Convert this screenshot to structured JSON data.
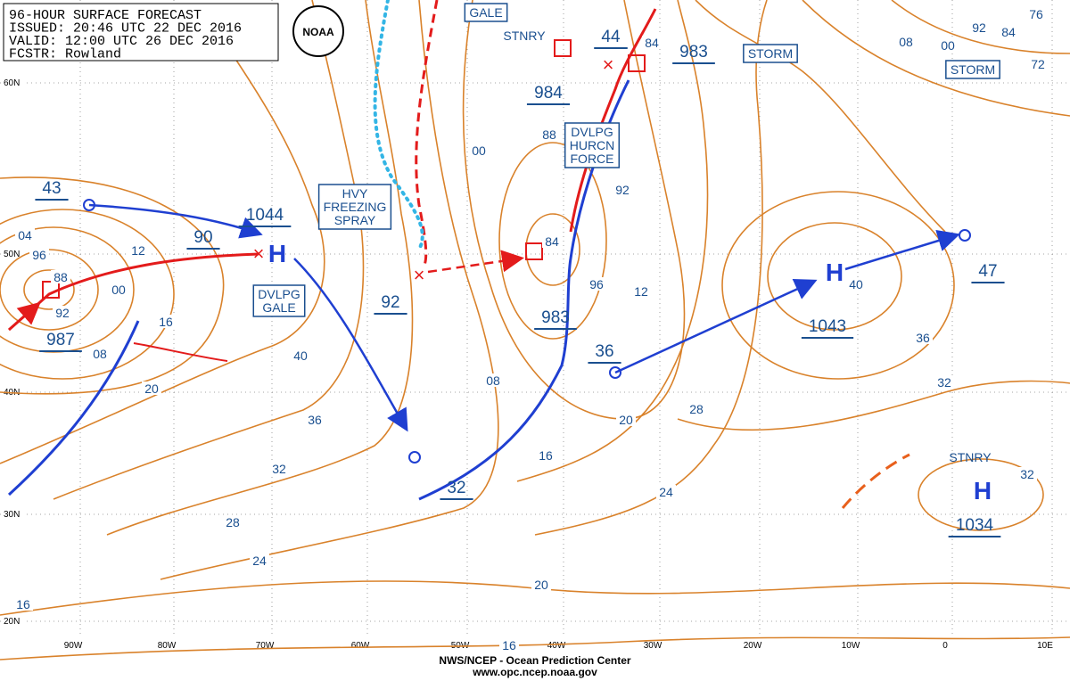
{
  "header": {
    "lines": [
      "96-HOUR SURFACE FORECAST",
      "ISSUED: 20:46 UTC 22 DEC 2016",
      "VALID:  12:00 UTC 26 DEC 2016",
      "FCSTR: Rowland"
    ],
    "logo": "NOAA"
  },
  "footer": {
    "agency": "NWS/NCEP - Ocean Prediction Center",
    "url": "www.opc.ncep.noaa.gov"
  },
  "latitudes": [
    "60N",
    "50N",
    "40N",
    "30N",
    "20N"
  ],
  "longitudes": [
    "90W",
    "80W",
    "70W",
    "60W",
    "50W",
    "40W",
    "30W",
    "20W",
    "10W",
    "0",
    "10E"
  ],
  "pressure_labels": [
    "43",
    "1044",
    "90",
    "987",
    "92",
    "983",
    "36",
    "32",
    "44",
    "983",
    "984",
    "1043",
    "47",
    "1034"
  ],
  "highs": [
    "H",
    "H",
    "H"
  ],
  "isobar_labels": [
    "04",
    "96",
    "88",
    "12",
    "00",
    "92",
    "16",
    "08",
    "20",
    "40",
    "36",
    "32",
    "28",
    "24",
    "20",
    "16",
    "16",
    "00",
    "88",
    "92",
    "84",
    "96",
    "12",
    "08",
    "20",
    "16",
    "28",
    "24",
    "40",
    "36",
    "32",
    "32",
    "84",
    "08",
    "00",
    "92",
    "84",
    "76",
    "72"
  ],
  "warnings": [
    {
      "lines": [
        "GALE"
      ],
      "boxed": true
    },
    {
      "lines": [
        "STORM"
      ],
      "boxed": true
    },
    {
      "lines": [
        "STORM"
      ],
      "boxed": true
    },
    {
      "lines": [
        "STNRY"
      ],
      "boxed": false
    },
    {
      "lines": [
        "STNRY"
      ],
      "boxed": false
    },
    {
      "lines": [
        "HVY",
        "FREEZING",
        "SPRAY"
      ],
      "boxed": true
    },
    {
      "lines": [
        "DVLPG",
        "GALE"
      ],
      "boxed": true
    },
    {
      "lines": [
        "DVLPG",
        "HURCN",
        "FORCE"
      ],
      "boxed": true
    }
  ]
}
